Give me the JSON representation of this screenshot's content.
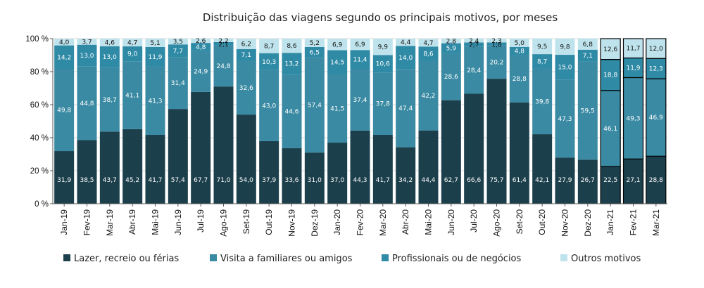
{
  "chart_data": {
    "type": "bar",
    "stacked": true,
    "title": "Distribuição das viagens segundo os principais motivos, por meses",
    "xlabel": "",
    "ylabel": "",
    "ylim": [
      0,
      100
    ],
    "yticks": [
      "0 %",
      "20 %",
      "40 %",
      "60 %",
      "80 %",
      "100 %"
    ],
    "grid": true,
    "legend_position": "bottom",
    "categories": [
      "Jan-19",
      "Fev-19",
      "Mar-19",
      "Abr-19",
      "Mai-19",
      "Jun-19",
      "Jul-19",
      "Ago-19",
      "Set-19",
      "Out-19",
      "Nov-19",
      "Dez-19",
      "Jan-20",
      "Fev-20",
      "Mar-20",
      "Abr-20",
      "Mai-20",
      "Jun-20",
      "Jul-20",
      "Ago-20",
      "Set-20",
      "Out-20",
      "Nov-20",
      "Dez-20",
      "Jan-21",
      "Fev-21",
      "Mar-21"
    ],
    "highlighted_categories": [
      "Jan-21",
      "Fev-21",
      "Mar-21"
    ],
    "series": [
      {
        "name": "Lazer, recreio ou férias",
        "color": "#1c3f4c",
        "values": [
          31.9,
          38.5,
          43.7,
          45.2,
          41.7,
          57.4,
          67.7,
          71.0,
          54.0,
          37.9,
          33.6,
          31.0,
          37.0,
          44.3,
          41.7,
          34.2,
          44.4,
          62.7,
          66.6,
          75.7,
          61.4,
          42.1,
          27.9,
          26.7,
          22.5,
          27.1,
          28.8
        ]
      },
      {
        "name": "Visita a familiares ou amigos",
        "color": "#3a8aa3",
        "values": [
          49.8,
          44.8,
          38.7,
          41.1,
          41.3,
          31.4,
          24.9,
          24.8,
          32.6,
          43.0,
          44.6,
          57.4,
          41.5,
          37.4,
          37.8,
          47.4,
          42.2,
          28.6,
          28.4,
          20.2,
          28.8,
          39.8,
          47.3,
          59.5,
          46.1,
          49.3,
          46.9
        ]
      },
      {
        "name": "Profissionais ou de negócios",
        "color": "#2f8aa6",
        "values": [
          14.2,
          13.0,
          13.0,
          9.0,
          11.9,
          7.7,
          4.8,
          2.1,
          7.1,
          10.3,
          13.2,
          6.5,
          14.5,
          11.4,
          10.6,
          14.0,
          8.6,
          5.9,
          2.7,
          1.8,
          4.8,
          8.7,
          15.0,
          7.1,
          18.8,
          11.9,
          12.3
        ]
      },
      {
        "name": "Outros motivos",
        "color": "#bfe3ec",
        "values": [
          4.0,
          3.7,
          4.6,
          4.7,
          5.1,
          3.5,
          2.6,
          2.2,
          6.2,
          8.7,
          8.6,
          5.2,
          6.9,
          6.9,
          9.9,
          4.4,
          4.7,
          2.8,
          2.4,
          2.3,
          5.0,
          9.5,
          9.8,
          6.8,
          12.6,
          11.7,
          12.0
        ]
      }
    ]
  }
}
